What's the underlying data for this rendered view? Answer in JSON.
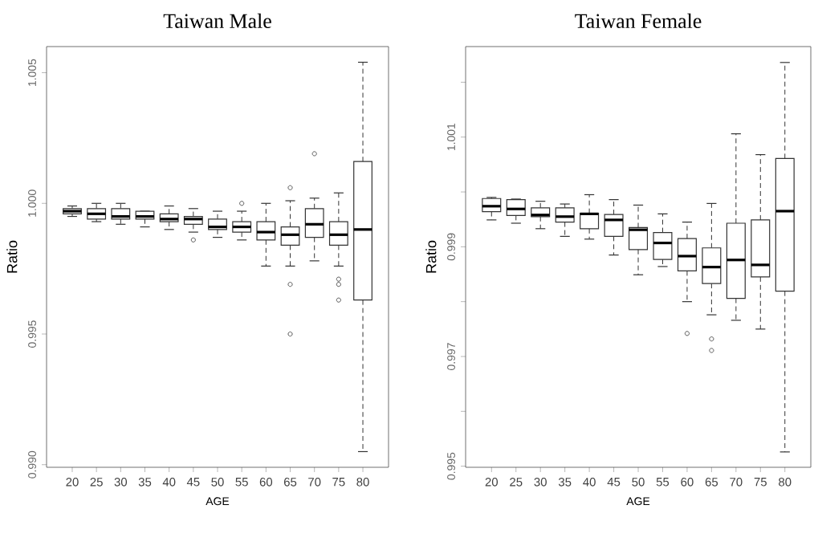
{
  "chart_data": [
    {
      "type": "box",
      "title": "Taiwan Male",
      "xlabel": "AGE",
      "ylabel": "Ratio",
      "color": "#333333",
      "categories": [
        "20",
        "25",
        "30",
        "35",
        "40",
        "45",
        "50",
        "55",
        "60",
        "65",
        "70",
        "75",
        "80"
      ],
      "ylim": [
        0.9899,
        1.006
      ],
      "yticks": [
        {
          "value": 0.99,
          "label": "0.990"
        },
        0.995,
        {
          "value": 1.0,
          "label": "1.000"
        },
        1.005
      ],
      "boxes": [
        {
          "low": 0.9995,
          "q1": 0.9996,
          "median": 0.9997,
          "q3": 0.9998,
          "high": 0.9999
        },
        {
          "low": 0.9993,
          "q1": 0.9994,
          "median": 0.9996,
          "q3": 0.9998,
          "high": 1.0
        },
        {
          "low": 0.9992,
          "q1": 0.9994,
          "median": 0.9995,
          "q3": 0.9998,
          "high": 1.0
        },
        {
          "low": 0.9991,
          "q1": 0.9994,
          "median": 0.9995,
          "q3": 0.9997,
          "high": 0.9997
        },
        {
          "low": 0.999,
          "q1": 0.9993,
          "median": 0.9994,
          "q3": 0.9996,
          "high": 0.9999
        },
        {
          "low": 0.9989,
          "q1": 0.9992,
          "median": 0.9994,
          "q3": 0.9995,
          "high": 0.9998,
          "outliers": [
            0.9986
          ]
        },
        {
          "low": 0.9987,
          "q1": 0.999,
          "median": 0.9991,
          "q3": 0.9994,
          "high": 0.9997
        },
        {
          "low": 0.9986,
          "q1": 0.9989,
          "median": 0.9991,
          "q3": 0.9993,
          "high": 0.9997,
          "outliers": [
            1.0
          ]
        },
        {
          "low": 0.9976,
          "q1": 0.9986,
          "median": 0.9989,
          "q3": 0.9993,
          "high": 1.0
        },
        {
          "low": 0.9976,
          "q1": 0.9984,
          "median": 0.9988,
          "q3": 0.9991,
          "high": 1.0001,
          "outliers": [
            1.0006,
            0.9969,
            0.995
          ]
        },
        {
          "low": 0.9978,
          "q1": 0.9987,
          "median": 0.9992,
          "q3": 0.9998,
          "high": 1.0002,
          "outliers": [
            1.0019
          ]
        },
        {
          "low": 0.9976,
          "q1": 0.9984,
          "median": 0.9988,
          "q3": 0.9993,
          "high": 1.0004,
          "outliers": [
            0.9971,
            0.9969,
            0.9963
          ]
        },
        {
          "low": 0.9905,
          "q1": 0.9963,
          "median": 0.999,
          "q3": 1.0016,
          "high": 1.0054
        }
      ]
    },
    {
      "type": "box",
      "title": "Taiwan Female",
      "xlabel": "AGE",
      "ylabel": "Ratio",
      "color": "#333333",
      "categories": [
        "20",
        "25",
        "30",
        "35",
        "40",
        "45",
        "50",
        "55",
        "60",
        "65",
        "70",
        "75",
        "80"
      ],
      "ylim": [
        0.99498,
        1.00265
      ],
      "yticks": [
        0.995,
        {
          "value": 0.996,
          "label": null
        },
        0.997,
        {
          "value": 0.998,
          "label": null
        },
        0.999,
        {
          "value": 1.0,
          "label": null
        },
        1.001,
        {
          "value": 1.002,
          "label": null
        }
      ],
      "boxes": [
        {
          "low": 0.99949,
          "q1": 0.99964,
          "median": 0.99974,
          "q3": 0.99988,
          "high": 0.9999
        },
        {
          "low": 0.99943,
          "q1": 0.99957,
          "median": 0.99969,
          "q3": 0.99986,
          "high": 0.99987
        },
        {
          "low": 0.99933,
          "q1": 0.99955,
          "median": 0.99958,
          "q3": 0.99971,
          "high": 0.99983
        },
        {
          "low": 0.99919,
          "q1": 0.99945,
          "median": 0.99955,
          "q3": 0.99971,
          "high": 0.99978
        },
        {
          "low": 0.99914,
          "q1": 0.99933,
          "median": 0.9996,
          "q3": 0.99961,
          "high": 0.99995
        },
        {
          "low": 0.99885,
          "q1": 0.99919,
          "median": 0.99949,
          "q3": 0.99959,
          "high": 0.99986
        },
        {
          "low": 0.99849,
          "q1": 0.99895,
          "median": 0.99931,
          "q3": 0.99935,
          "high": 0.99976
        },
        {
          "low": 0.99864,
          "q1": 0.99877,
          "median": 0.99907,
          "q3": 0.99926,
          "high": 0.9996
        },
        {
          "low": 0.998,
          "q1": 0.99856,
          "median": 0.99883,
          "q3": 0.99915,
          "high": 0.99945,
          "outliers": [
            0.99742
          ]
        },
        {
          "low": 0.99776,
          "q1": 0.99833,
          "median": 0.99863,
          "q3": 0.99898,
          "high": 0.99979,
          "outliers": [
            0.99732,
            0.99711
          ]
        },
        {
          "low": 0.99766,
          "q1": 0.99806,
          "median": 0.99876,
          "q3": 0.99943,
          "high": 1.00106
        },
        {
          "low": 0.9975,
          "q1": 0.99845,
          "median": 0.99867,
          "q3": 0.99949,
          "high": 1.00068
        },
        {
          "low": 0.99526,
          "q1": 0.99819,
          "median": 0.99965,
          "q3": 1.00061,
          "high": 1.00236
        }
      ]
    }
  ]
}
